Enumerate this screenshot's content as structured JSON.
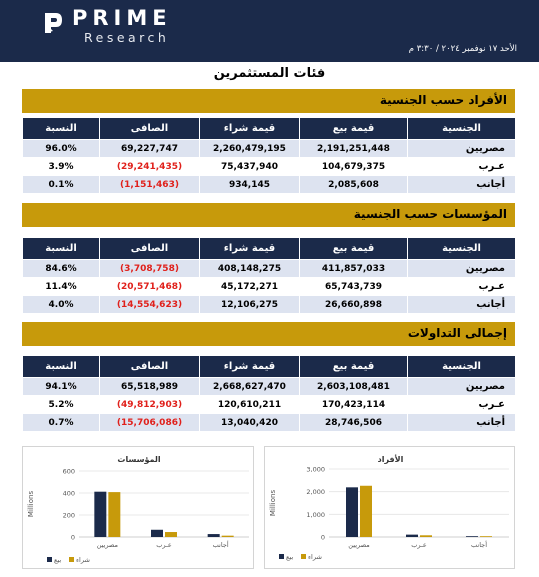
{
  "header": {
    "brand": "PRIME",
    "subbrand": "Research",
    "date": "الأحد ١٧ نوفمبر ٢٠٢٤ / ٣:٣٠ م"
  },
  "page_title": "فئات المستثمرين",
  "columns": {
    "nationality": "الجنسية",
    "sell": "قيمة بيع",
    "buy": "قيمة شراء",
    "net": "الصافى",
    "ratio": "النسبة"
  },
  "sections": [
    {
      "title": "الأفراد حسب الجنسية",
      "rows": [
        {
          "name": "مصريين",
          "sell": "2,191,251,448",
          "buy": "2,260,479,195",
          "net": "69,227,747",
          "ratio": "96.0%",
          "negative": false
        },
        {
          "name": "عـرب",
          "sell": "104,679,375",
          "buy": "75,437,940",
          "net": "(29,241,435)",
          "ratio": "3.9%",
          "negative": true
        },
        {
          "name": "أجانب",
          "sell": "2,085,608",
          "buy": "934,145",
          "net": "(1,151,463)",
          "ratio": "0.1%",
          "negative": true
        }
      ]
    },
    {
      "title": "المؤسسات حسب الجنسية",
      "rows": [
        {
          "name": "مصريين",
          "sell": "411,857,033",
          "buy": "408,148,275",
          "net": "(3,708,758)",
          "ratio": "84.6%",
          "negative": true
        },
        {
          "name": "عـرب",
          "sell": "65,743,739",
          "buy": "45,172,271",
          "net": "(20,571,468)",
          "ratio": "11.4%",
          "negative": true
        },
        {
          "name": "أجانب",
          "sell": "26,660,898",
          "buy": "12,106,275",
          "net": "(14,554,623)",
          "ratio": "4.0%",
          "negative": true
        }
      ]
    },
    {
      "title": "إجمالى التداولات",
      "rows": [
        {
          "name": "مصريين",
          "sell": "2,603,108,481",
          "buy": "2,668,627,470",
          "net": "65,518,989",
          "ratio": "94.1%",
          "negative": false
        },
        {
          "name": "عـرب",
          "sell": "170,423,114",
          "buy": "120,610,211",
          "net": "(49,812,903)",
          "ratio": "5.2%",
          "negative": true
        },
        {
          "name": "أجانب",
          "sell": "28,746,506",
          "buy": "13,040,420",
          "net": "(15,706,086)",
          "ratio": "0.7%",
          "negative": true
        }
      ]
    }
  ],
  "colors": {
    "sell": "#1b2a4a",
    "buy": "#c79a0b",
    "negative": "#e0201b",
    "band": "#c79a0b"
  },
  "chart_data": [
    {
      "type": "bar",
      "title": "المؤسسات",
      "ylabel": "Millions",
      "ylim": [
        0,
        600
      ],
      "yticks": [
        "0",
        "200",
        "400",
        "600"
      ],
      "yticks_values": [
        0,
        200,
        400,
        600
      ],
      "categories": [
        "مصريين",
        "عـرب",
        "أجانب"
      ],
      "series": [
        {
          "name": "بيع",
          "values": [
            411.86,
            65.74,
            26.66
          ]
        },
        {
          "name": "شراء",
          "values": [
            408.15,
            45.17,
            12.11
          ]
        }
      ],
      "legend": "bottom-left",
      "grid": true
    },
    {
      "type": "bar",
      "title": "الأفراد",
      "ylabel": "Millions",
      "ylim": [
        0,
        3000
      ],
      "yticks": [
        "0",
        "1,000",
        "2,000",
        "3,000"
      ],
      "yticks_values": [
        0,
        1000,
        2000,
        3000
      ],
      "categories": [
        "مصريين",
        "عـرب",
        "أجانب"
      ],
      "series": [
        {
          "name": "بيع",
          "values": [
            2191.25,
            104.68,
            2.09
          ]
        },
        {
          "name": "شراء",
          "values": [
            2260.48,
            75.44,
            0.93
          ]
        }
      ],
      "legend": "bottom-left",
      "grid": true
    }
  ]
}
